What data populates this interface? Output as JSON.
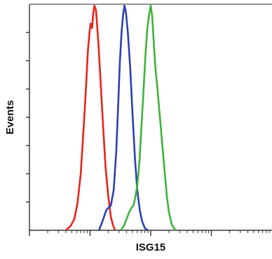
{
  "chart_data": {
    "type": "line",
    "title": "",
    "xlabel": "ISG15",
    "ylabel": "Events",
    "x_scale": "log",
    "xlim": [
      10,
      100000
    ],
    "ylim": [
      0,
      100
    ],
    "grid": false,
    "series": [
      {
        "color": "#e8231c",
        "points": [
          [
            40,
            0
          ],
          [
            48,
            2
          ],
          [
            55,
            5
          ],
          [
            62,
            12
          ],
          [
            70,
            25
          ],
          [
            78,
            45
          ],
          [
            85,
            62
          ],
          [
            92,
            80
          ],
          [
            98,
            88
          ],
          [
            102,
            92
          ],
          [
            108,
            90
          ],
          [
            112,
            96
          ],
          [
            118,
            100
          ],
          [
            125,
            98
          ],
          [
            130,
            92
          ],
          [
            138,
            82
          ],
          [
            150,
            65
          ],
          [
            165,
            45
          ],
          [
            180,
            28
          ],
          [
            200,
            15
          ],
          [
            220,
            6
          ],
          [
            240,
            2
          ],
          [
            260,
            0
          ]
        ]
      },
      {
        "color": "#2b3fb5",
        "points": [
          [
            140,
            0
          ],
          [
            155,
            3
          ],
          [
            170,
            6
          ],
          [
            185,
            9
          ],
          [
            200,
            10
          ],
          [
            220,
            11
          ],
          [
            245,
            18
          ],
          [
            270,
            35
          ],
          [
            290,
            55
          ],
          [
            310,
            75
          ],
          [
            330,
            88
          ],
          [
            350,
            96
          ],
          [
            370,
            100
          ],
          [
            390,
            97
          ],
          [
            420,
            88
          ],
          [
            460,
            72
          ],
          [
            500,
            52
          ],
          [
            550,
            32
          ],
          [
            600,
            18
          ],
          [
            660,
            9
          ],
          [
            720,
            4
          ],
          [
            800,
            1
          ],
          [
            900,
            0
          ]
        ]
      },
      {
        "color": "#3fb23a",
        "points": [
          [
            320,
            0
          ],
          [
            360,
            2
          ],
          [
            400,
            5
          ],
          [
            440,
            8
          ],
          [
            480,
            10
          ],
          [
            520,
            11
          ],
          [
            560,
            15
          ],
          [
            600,
            20
          ],
          [
            650,
            30
          ],
          [
            700,
            45
          ],
          [
            760,
            62
          ],
          [
            820,
            78
          ],
          [
            880,
            90
          ],
          [
            940,
            96
          ],
          [
            1000,
            100
          ],
          [
            1060,
            95
          ],
          [
            1130,
            82
          ],
          [
            1200,
            72
          ],
          [
            1300,
            62
          ],
          [
            1420,
            50
          ],
          [
            1550,
            38
          ],
          [
            1700,
            26
          ],
          [
            1850,
            15
          ],
          [
            2000,
            8
          ],
          [
            2200,
            3
          ],
          [
            2400,
            1
          ],
          [
            2600,
            0
          ]
        ]
      }
    ]
  }
}
